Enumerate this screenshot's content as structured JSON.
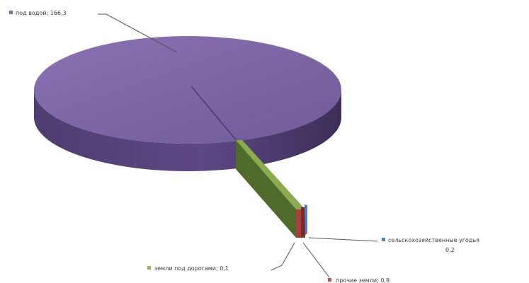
{
  "chart_data": {
    "type": "pie",
    "style": "3d-exploded",
    "slices": [
      {
        "label": "под водой",
        "value": 166.3,
        "value_text": "166,3",
        "color": "#7f65a8"
      },
      {
        "label": "сельскохозяйственные угодья",
        "label_visible": "сельскохозяйственные угодья",
        "value": 0.2,
        "value_text": "0,2",
        "color": "#4f7fbe"
      },
      {
        "label": "прочие земли",
        "value": 0.8,
        "value_text": "0,8",
        "color": "#c0504d"
      },
      {
        "label": "земли под дорогами",
        "value": 0.1,
        "value_text": "0,1",
        "color": "#9bbb59"
      }
    ],
    "legend": "none",
    "data_labels": "outside-with-leader-lines"
  }
}
